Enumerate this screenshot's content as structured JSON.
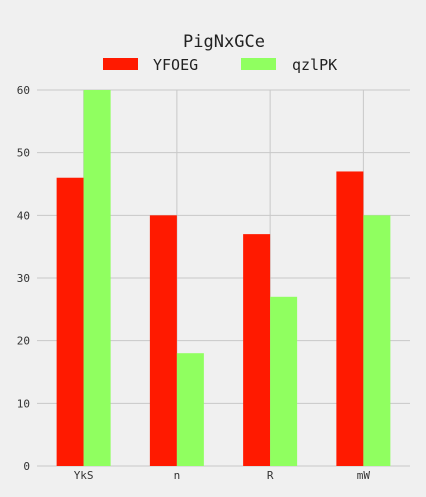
{
  "chart_data": {
    "type": "bar",
    "title": "PigNxGCe",
    "categories": [
      "YkS",
      "n",
      "R",
      "mW"
    ],
    "series": [
      {
        "name": "YFOEG",
        "color": "#ff1a00",
        "values": [
          46,
          40,
          37,
          47
        ]
      },
      {
        "name": "qzlPK",
        "color": "#90ff60",
        "values": [
          60,
          18,
          27,
          40
        ]
      }
    ],
    "ylim": [
      0,
      60
    ],
    "yticks": [
      0,
      10,
      20,
      30,
      40,
      50,
      60
    ],
    "grid": true,
    "legend_position": "top-center",
    "xlabel": "",
    "ylabel": ""
  }
}
